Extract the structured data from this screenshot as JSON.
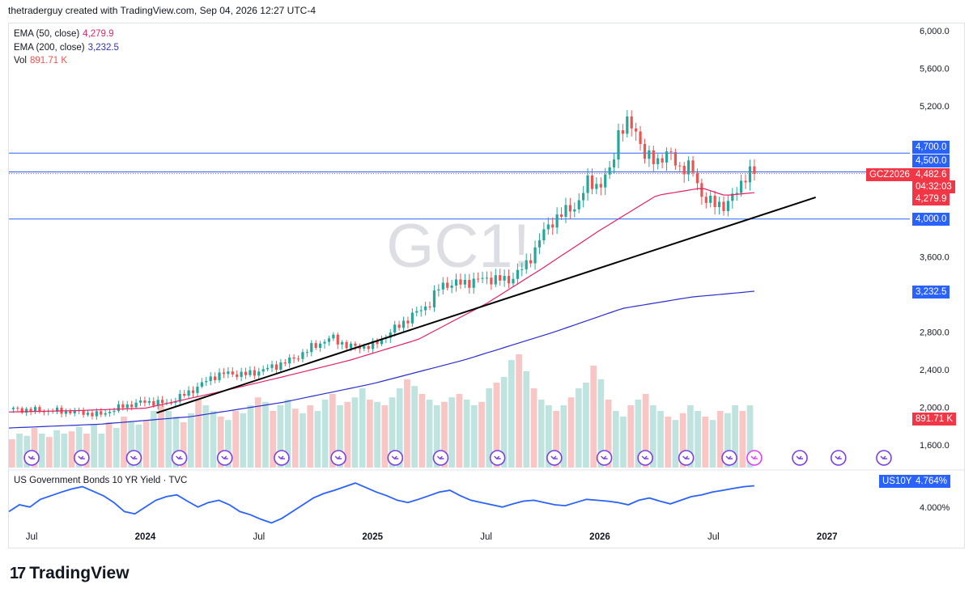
{
  "header": {
    "text": "thetraderguy created with TradingView.com, Sep 04, 2026 12:27 UTC-4"
  },
  "brand": {
    "logo": "17",
    "name": "TradingView"
  },
  "legend": [
    {
      "label": "EMA (50, close)",
      "value": "4,279.9",
      "color": "#e91e63"
    },
    {
      "label": "EMA (200, close)",
      "value": "3,232.5",
      "color": "#2a2ed1"
    },
    {
      "label": "Vol",
      "value": "891.71 K",
      "color": "#ef5350"
    }
  ],
  "watermark": "GC1!",
  "sub_legend": "US Government Bonds 10 YR Yield · TVC",
  "tags": {
    "h4700": "4,700.0",
    "h4500": "4,500.0",
    "price_symbol": "GCZ2026",
    "price": "4,482.6",
    "countdown": "04:32:03",
    "ema50": "4,279.9",
    "h4000": "4,000.0",
    "ema200": "3,232.5",
    "vol": "891.71 K",
    "us10y_symbol": "US10Y",
    "us10y_value": "4.764%",
    "us10y_axis": "4.000%"
  },
  "colors": {
    "up": "#26a69a",
    "down": "#ef5350",
    "ema50": "#e91e63",
    "ema200": "#2a2ed1",
    "hline": "#2962ff",
    "trend": "#000000",
    "yield": "#2962ff",
    "vol_up": "#bfe3df",
    "vol_down": "#f7c6c5"
  },
  "chart_data": [
    {
      "type": "candlestick",
      "title": "GC1!",
      "y_ticks": [
        6000,
        5600,
        5200,
        4700,
        4500,
        4000,
        3600,
        3232.5,
        2800,
        2400,
        2000,
        1600
      ],
      "y_tick_labels": [
        "6,000.0",
        "5,600.0",
        "5,200.0",
        "4,700.0",
        "4,500.0",
        "4,000.0",
        "3,600.0",
        "3,232.5",
        "2,800.0",
        "2,400.0",
        "2,000.0",
        "1,600.0"
      ],
      "x_tick_labels": [
        "Jul",
        "2024",
        "Jul",
        "2025",
        "Jul",
        "2026",
        "Jul",
        "2027"
      ],
      "horizontal_lines": [
        4700,
        4500,
        4000
      ],
      "last_price": 4482.6,
      "ema50_last": 4279.9,
      "ema200_last": 3232.5,
      "close_path": [
        [
          2023.4,
          1980
        ],
        [
          2023.55,
          1965
        ],
        [
          2023.7,
          1950
        ],
        [
          2023.8,
          1920
        ],
        [
          2023.9,
          2010
        ],
        [
          2024.0,
          2060
        ],
        [
          2024.1,
          2040
        ],
        [
          2024.2,
          2170
        ],
        [
          2024.3,
          2330
        ],
        [
          2024.35,
          2360
        ],
        [
          2024.45,
          2350
        ],
        [
          2024.55,
          2420
        ],
        [
          2024.65,
          2510
        ],
        [
          2024.75,
          2660
        ],
        [
          2024.82,
          2740
        ],
        [
          2024.9,
          2640
        ],
        [
          2025.0,
          2650
        ],
        [
          2025.08,
          2800
        ],
        [
          2025.15,
          2930
        ],
        [
          2025.25,
          3100
        ],
        [
          2025.3,
          3300
        ],
        [
          2025.4,
          3320
        ],
        [
          2025.5,
          3370
        ],
        [
          2025.6,
          3350
        ],
        [
          2025.68,
          3520
        ],
        [
          2025.75,
          3850
        ],
        [
          2025.8,
          4000
        ],
        [
          2025.85,
          4080
        ],
        [
          2025.9,
          4150
        ],
        [
          2025.95,
          4400
        ],
        [
          2026.0,
          4350
        ],
        [
          2026.05,
          4530
        ],
        [
          2026.08,
          4920
        ],
        [
          2026.12,
          5000
        ],
        [
          2026.16,
          4950
        ],
        [
          2026.2,
          4650
        ],
        [
          2026.25,
          4620
        ],
        [
          2026.3,
          4700
        ],
        [
          2026.35,
          4550
        ],
        [
          2026.4,
          4550
        ],
        [
          2026.45,
          4250
        ],
        [
          2026.5,
          4150
        ],
        [
          2026.55,
          4150
        ],
        [
          2026.6,
          4270
        ],
        [
          2026.65,
          4520
        ],
        [
          2026.68,
          4482.6
        ]
      ],
      "ema50_path": [
        [
          2023.4,
          1950
        ],
        [
          2023.7,
          1965
        ],
        [
          2024.0,
          1990
        ],
        [
          2024.3,
          2150
        ],
        [
          2024.6,
          2320
        ],
        [
          2024.9,
          2500
        ],
        [
          2025.2,
          2720
        ],
        [
          2025.5,
          3100
        ],
        [
          2025.75,
          3480
        ],
        [
          2026.0,
          3880
        ],
        [
          2026.25,
          4250
        ],
        [
          2026.45,
          4330
        ],
        [
          2026.55,
          4250
        ],
        [
          2026.68,
          4279.9
        ]
      ],
      "ema200_path": [
        [
          2023.4,
          1780
        ],
        [
          2023.8,
          1820
        ],
        [
          2024.2,
          1900
        ],
        [
          2024.6,
          2050
        ],
        [
          2025.0,
          2250
        ],
        [
          2025.4,
          2500
        ],
        [
          2025.8,
          2800
        ],
        [
          2026.1,
          3050
        ],
        [
          2026.4,
          3170
        ],
        [
          2026.68,
          3232.5
        ]
      ],
      "trendline": [
        [
          2024.05,
          1940
        ],
        [
          2026.95,
          4230
        ]
      ],
      "volume_relative": [
        0.25,
        0.3,
        0.28,
        0.35,
        0.3,
        0.27,
        0.33,
        0.3,
        0.32,
        0.36,
        0.3,
        0.38,
        0.3,
        0.4,
        0.35,
        0.45,
        0.4,
        0.38,
        0.42,
        0.5,
        0.55,
        0.5,
        0.45,
        0.4,
        0.48,
        0.6,
        0.55,
        0.5,
        0.45,
        0.42,
        0.5,
        0.48,
        0.55,
        0.62,
        0.58,
        0.5,
        0.55,
        0.6,
        0.52,
        0.48,
        0.55,
        0.5,
        0.6,
        0.65,
        0.55,
        0.58,
        0.62,
        0.7,
        0.6,
        0.58,
        0.55,
        0.62,
        0.7,
        0.78,
        0.72,
        0.65,
        0.6,
        0.55,
        0.58,
        0.62,
        0.65,
        0.6,
        0.55,
        0.58,
        0.7,
        0.75,
        0.8,
        0.95,
        1.0,
        0.85,
        0.7,
        0.6,
        0.55,
        0.5,
        0.55,
        0.62,
        0.7,
        0.75,
        0.9,
        0.78,
        0.6,
        0.5,
        0.45,
        0.55,
        0.6,
        0.65,
        0.55,
        0.5,
        0.45,
        0.42,
        0.48,
        0.55,
        0.5,
        0.45,
        0.42,
        0.5,
        0.48,
        0.55,
        0.5,
        0.55
      ]
    },
    {
      "type": "line",
      "title": "US Government Bonds 10 YR Yield · TVC",
      "last_value": 4.764,
      "y_tick_labels": [
        "4.000%"
      ],
      "relative_series": [
        0.35,
        0.5,
        0.45,
        0.62,
        0.7,
        0.78,
        0.85,
        0.9,
        0.8,
        0.7,
        0.55,
        0.35,
        0.3,
        0.45,
        0.6,
        0.68,
        0.72,
        0.58,
        0.45,
        0.55,
        0.6,
        0.5,
        0.35,
        0.28,
        0.18,
        0.1,
        0.2,
        0.35,
        0.5,
        0.65,
        0.75,
        0.82,
        0.9,
        0.98,
        0.88,
        0.78,
        0.7,
        0.6,
        0.55,
        0.62,
        0.7,
        0.78,
        0.82,
        0.7,
        0.6,
        0.55,
        0.5,
        0.45,
        0.52,
        0.58,
        0.6,
        0.55,
        0.5,
        0.48,
        0.55,
        0.62,
        0.6,
        0.58,
        0.55,
        0.5,
        0.6,
        0.65,
        0.58,
        0.52,
        0.6,
        0.68,
        0.72,
        0.78,
        0.82,
        0.86,
        0.9,
        0.92
      ]
    }
  ]
}
